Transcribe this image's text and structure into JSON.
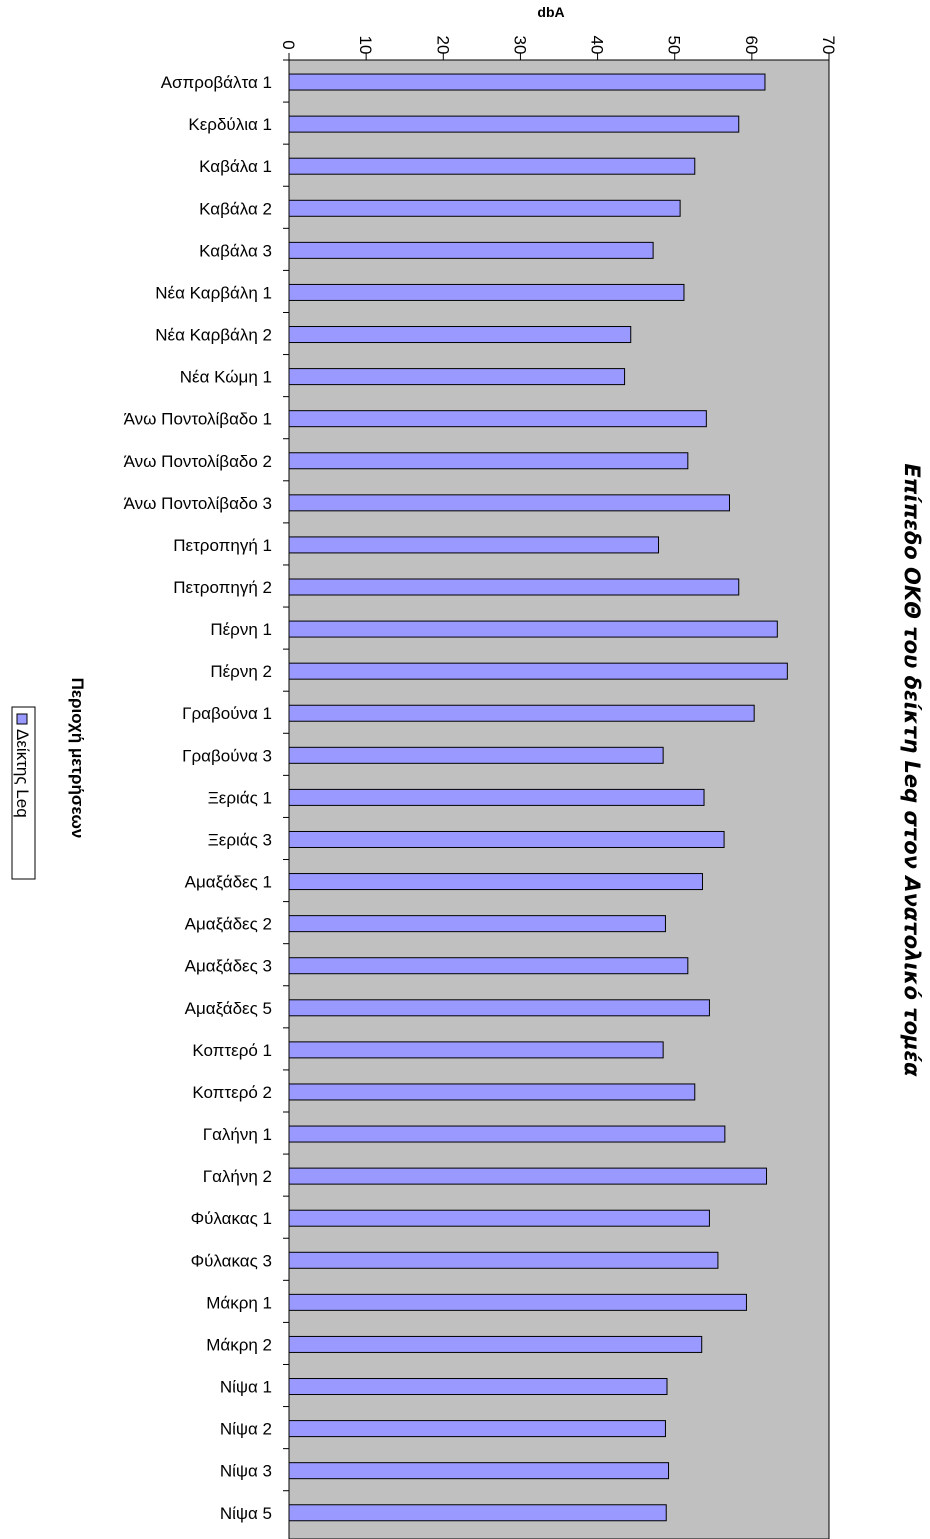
{
  "chart_data": {
    "type": "bar",
    "orientation": "horizontal",
    "title": "Επίπεδο ΟΚΘ του δείκτη Leq στον Ανατολικό τομέα",
    "xlabel": "dbA",
    "ylabel": "Περιοχή μετρήσεων",
    "xlim": [
      0,
      70
    ],
    "xticks": [
      0,
      10,
      20,
      30,
      40,
      50,
      60,
      70
    ],
    "grid": false,
    "legend_position": "left",
    "colors": {
      "bar_fill": "#9999ff",
      "bar_stroke": "#000000",
      "plot_bg": "#c0c0c0"
    },
    "categories": [
      "Ασπροβάλτα 1",
      "Κερδύλια 1",
      "Καβάλα 1",
      "Καβάλα 2",
      "Καβάλα 3",
      "Νέα Καρβάλη 1",
      "Νέα Καρβάλη 2",
      "Νέα Κώμη 1",
      "Άνω Ποντολίβαδο 1",
      "Άνω Ποντολίβαδο 2",
      "Άνω Ποντολίβαδο 3",
      "Πετροπηγή 1",
      "Πετροπηγή 2",
      "Πέρνη 1",
      "Πέρνη 2",
      "Γραβούνα 1",
      "Γραβούνα 3",
      "Ξεριάς 1",
      "Ξεριάς 3",
      "Αμαξάδες 1",
      "Αμαξάδες 2",
      "Αμαξάδες 3",
      "Αμαξάδες 5",
      "Κοπτερό 1",
      "Κοπτερό 2",
      "Γαλήνη 1",
      "Γαλήνη 2",
      "Φύλακας 1",
      "Φύλακας 3",
      "Μάκρη 1",
      "Μάκρη 2",
      "Νίψα 1",
      "Νίψα 2",
      "Νίψα 3",
      "Νίψα 5"
    ],
    "series": [
      {
        "name": "Δείκτης Leq",
        "values": [
          61.7,
          58.3,
          52.6,
          50.7,
          47.2,
          51.2,
          44.3,
          43.5,
          54.1,
          51.7,
          57.1,
          47.9,
          58.3,
          63.3,
          64.6,
          60.3,
          48.5,
          53.8,
          56.4,
          53.6,
          48.8,
          51.7,
          54.5,
          48.5,
          52.6,
          56.5,
          61.9,
          54.5,
          55.6,
          59.3,
          53.5,
          49.0,
          48.8,
          49.2,
          48.9
        ]
      }
    ]
  }
}
